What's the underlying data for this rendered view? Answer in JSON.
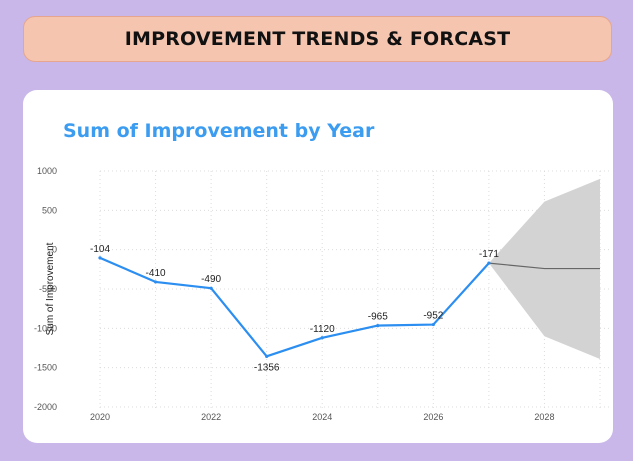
{
  "header": {
    "title": "IMPROVEMENT TRENDS & FORCAST"
  },
  "chart_data": {
    "type": "line",
    "title": "Sum of Improvement by Year",
    "xlabel": "",
    "ylabel": "Sum of Improvement",
    "xlim": [
      2020,
      2029
    ],
    "ylim": [
      -2000,
      1000
    ],
    "x_ticks": [
      "2020",
      "2022",
      "2024",
      "2026",
      "2028"
    ],
    "y_ticks": [
      "1000",
      "500",
      "0",
      "-500",
      "-1000",
      "-1500",
      "-2000"
    ],
    "grid": true,
    "series": [
      {
        "x": [
          2020,
          2021,
          2022,
          2023,
          2024,
          2025,
          2026,
          2027
        ],
        "values": [
          -104,
          -410,
          -490,
          -1356,
          -1120,
          -965,
          -952,
          -171
        ],
        "labels": [
          "-104",
          "-410",
          "-490",
          "-1356",
          "-1120",
          "-965",
          "-952",
          "-171"
        ],
        "color": "#2b8ef0"
      }
    ],
    "forecast": {
      "x": [
        2027,
        2028,
        2029
      ],
      "values": [
        -171,
        -240,
        -240
      ],
      "upper": [
        -171,
        610,
        900
      ],
      "lower": [
        -171,
        -1100,
        -1390
      ],
      "line_color": "#666666",
      "band_color": "#d3d3d3"
    }
  }
}
